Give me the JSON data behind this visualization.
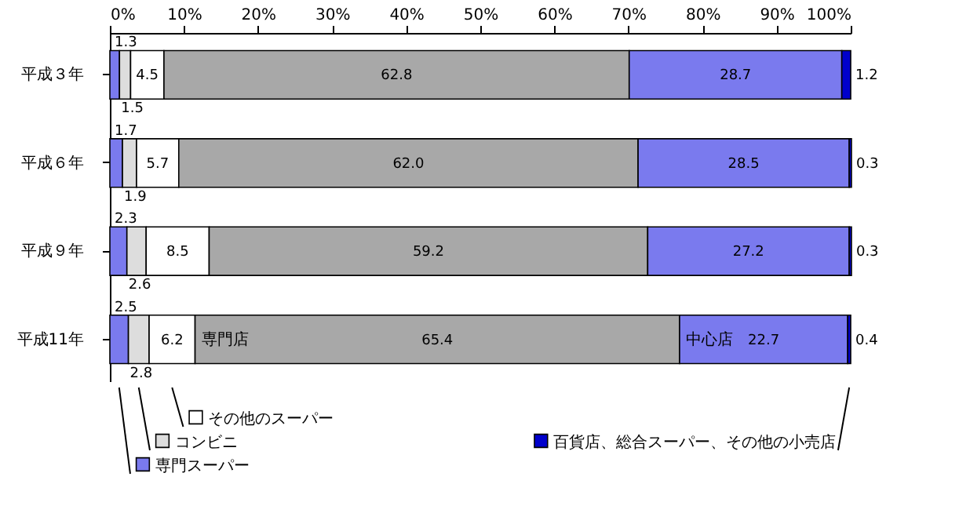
{
  "chart_data": {
    "type": "bar",
    "orientation": "horizontal",
    "stacked": true,
    "categories": [
      "平成３年",
      "平成６年",
      "平成９年",
      "平成11年"
    ],
    "series": [
      {
        "name": "専門スーパー",
        "color": "#7a7aee",
        "values": [
          1.3,
          1.7,
          2.3,
          2.5
        ],
        "value_labels": [
          "1.3",
          "1.7",
          "2.3",
          "2.5"
        ]
      },
      {
        "name": "コンビニ",
        "color": "#dddddd",
        "values": [
          1.5,
          1.9,
          2.6,
          2.8
        ],
        "value_labels": [
          "1.5",
          "1.9",
          "2.6",
          "2.8"
        ]
      },
      {
        "name": "その他のスーパー",
        "color": "#ffffff",
        "values": [
          4.5,
          5.7,
          8.5,
          6.2
        ],
        "value_labels": [
          "4.5",
          "5.7",
          "8.5",
          "6.2"
        ]
      },
      {
        "name": "専門店",
        "color": "#a8a8a8",
        "values": [
          62.8,
          62.0,
          59.2,
          65.4
        ],
        "value_labels": [
          "62.8",
          "62.0",
          "59.2",
          "65.4"
        ]
      },
      {
        "name": "中心店",
        "color": "#7a7aee",
        "values": [
          28.7,
          28.5,
          27.2,
          22.7
        ],
        "value_labels": [
          "28.7",
          "28.5",
          "27.2",
          "22.7"
        ]
      },
      {
        "name": "百貨店、総合スーパー、その他の小売店",
        "color": "#0000cc",
        "values": [
          1.2,
          0.3,
          0.3,
          0.4
        ],
        "value_labels": [
          "1.2",
          "0.3",
          "0.3",
          "0.4"
        ]
      }
    ],
    "xlim": [
      0,
      100
    ],
    "xticks": [
      {
        "value": 0,
        "label": "0%"
      },
      {
        "value": 10,
        "label": "10%"
      },
      {
        "value": 20,
        "label": "20%"
      },
      {
        "value": 30,
        "label": "30%"
      },
      {
        "value": 40,
        "label": "40%"
      },
      {
        "value": 50,
        "label": "50%"
      },
      {
        "value": 60,
        "label": "60%"
      },
      {
        "value": 70,
        "label": "70%"
      },
      {
        "value": 80,
        "label": "80%"
      },
      {
        "value": 90,
        "label": "90%"
      },
      {
        "value": 100,
        "label": "100%"
      }
    ],
    "legend": "bottom"
  }
}
